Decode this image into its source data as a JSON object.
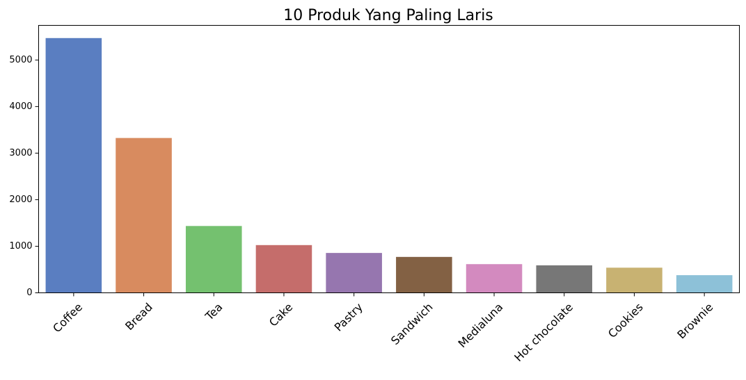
{
  "chart_data": {
    "type": "bar",
    "title": "10 Produk Yang Paling Laris",
    "xlabel": "",
    "ylabel": "",
    "categories": [
      "Coffee",
      "Bread",
      "Tea",
      "Cake",
      "Pastry",
      "Sandwich",
      "Medialuna",
      "Hot chocolate",
      "Cookies",
      "Brownie"
    ],
    "values": [
      5471,
      3325,
      1435,
      1025,
      856,
      771,
      616,
      590,
      540,
      379
    ],
    "colors": [
      "#5A7EC1",
      "#D88B5F",
      "#74C16F",
      "#C56D6B",
      "#9676AF",
      "#836144",
      "#D38ABF",
      "#777777",
      "#C8B272",
      "#8DC1D8"
    ],
    "ylim": [
      0,
      5744
    ],
    "yticks": [
      0,
      1000,
      2000,
      3000,
      4000,
      5000
    ],
    "grid": false,
    "legend": "none"
  }
}
